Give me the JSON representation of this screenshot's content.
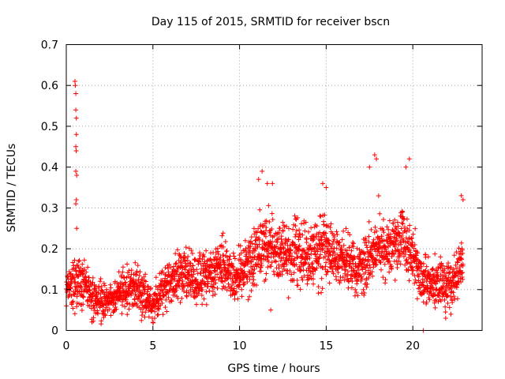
{
  "chart_data": {
    "type": "scatter",
    "title": "Day 115 of 2015, SRMTID for receiver bscn",
    "xlabel": "GPS time / hours",
    "ylabel": "SRMTID / TECUs",
    "xlim": [
      0,
      24
    ],
    "ylim": [
      0,
      0.7
    ],
    "xticks": [
      0,
      5,
      10,
      15,
      20
    ],
    "xtick_labels": [
      "0",
      "5",
      "10",
      "15",
      "20"
    ],
    "yticks": [
      0,
      0.1,
      0.2,
      0.3,
      0.4,
      0.5,
      0.6,
      0.7
    ],
    "ytick_labels": [
      "0",
      "0.1",
      "0.2",
      "0.3",
      "0.4",
      "0.5",
      "0.6",
      "0.7"
    ],
    "grid": true,
    "marker": "+",
    "series": [
      {
        "name": "SRMTID",
        "color": "#ff0000",
        "trend": [
          {
            "x": 0.0,
            "y": 0.1
          },
          {
            "x": 0.5,
            "y": 0.11
          },
          {
            "x": 1.0,
            "y": 0.12
          },
          {
            "x": 1.5,
            "y": 0.08
          },
          {
            "x": 2.0,
            "y": 0.07
          },
          {
            "x": 2.5,
            "y": 0.07
          },
          {
            "x": 3.0,
            "y": 0.09
          },
          {
            "x": 3.5,
            "y": 0.1
          },
          {
            "x": 4.0,
            "y": 0.11
          },
          {
            "x": 4.5,
            "y": 0.09
          },
          {
            "x": 5.0,
            "y": 0.06
          },
          {
            "x": 5.5,
            "y": 0.1
          },
          {
            "x": 6.0,
            "y": 0.11
          },
          {
            "x": 6.5,
            "y": 0.14
          },
          {
            "x": 7.0,
            "y": 0.13
          },
          {
            "x": 7.5,
            "y": 0.12
          },
          {
            "x": 8.0,
            "y": 0.14
          },
          {
            "x": 8.5,
            "y": 0.15
          },
          {
            "x": 9.0,
            "y": 0.16
          },
          {
            "x": 9.5,
            "y": 0.13
          },
          {
            "x": 10.0,
            "y": 0.13
          },
          {
            "x": 10.5,
            "y": 0.17
          },
          {
            "x": 11.0,
            "y": 0.19
          },
          {
            "x": 11.5,
            "y": 0.21
          },
          {
            "x": 12.0,
            "y": 0.2
          },
          {
            "x": 12.5,
            "y": 0.18
          },
          {
            "x": 13.0,
            "y": 0.18
          },
          {
            "x": 13.5,
            "y": 0.2
          },
          {
            "x": 14.0,
            "y": 0.18
          },
          {
            "x": 14.5,
            "y": 0.19
          },
          {
            "x": 15.0,
            "y": 0.21
          },
          {
            "x": 15.5,
            "y": 0.19
          },
          {
            "x": 16.0,
            "y": 0.17
          },
          {
            "x": 16.5,
            "y": 0.16
          },
          {
            "x": 17.0,
            "y": 0.15
          },
          {
            "x": 17.5,
            "y": 0.17
          },
          {
            "x": 18.0,
            "y": 0.22
          },
          {
            "x": 18.5,
            "y": 0.2
          },
          {
            "x": 19.0,
            "y": 0.21
          },
          {
            "x": 19.5,
            "y": 0.22
          },
          {
            "x": 20.0,
            "y": 0.17
          },
          {
            "x": 20.5,
            "y": 0.13
          },
          {
            "x": 21.0,
            "y": 0.12
          },
          {
            "x": 21.5,
            "y": 0.12
          },
          {
            "x": 22.0,
            "y": 0.11
          },
          {
            "x": 22.5,
            "y": 0.13
          },
          {
            "x": 22.9,
            "y": 0.16
          }
        ],
        "spikes": [
          {
            "x": 0.5,
            "y": 0.61
          },
          {
            "x": 0.52,
            "y": 0.6
          },
          {
            "x": 0.55,
            "y": 0.58
          },
          {
            "x": 0.55,
            "y": 0.54
          },
          {
            "x": 0.58,
            "y": 0.52
          },
          {
            "x": 0.58,
            "y": 0.48
          },
          {
            "x": 0.55,
            "y": 0.45
          },
          {
            "x": 0.57,
            "y": 0.44
          },
          {
            "x": 0.55,
            "y": 0.39
          },
          {
            "x": 0.6,
            "y": 0.38
          },
          {
            "x": 0.58,
            "y": 0.32
          },
          {
            "x": 0.55,
            "y": 0.31
          },
          {
            "x": 0.6,
            "y": 0.25
          },
          {
            "x": 11.3,
            "y": 0.39
          },
          {
            "x": 11.1,
            "y": 0.37
          },
          {
            "x": 11.6,
            "y": 0.36
          },
          {
            "x": 11.9,
            "y": 0.36
          },
          {
            "x": 14.8,
            "y": 0.36
          },
          {
            "x": 15.0,
            "y": 0.35
          },
          {
            "x": 17.8,
            "y": 0.43
          },
          {
            "x": 17.9,
            "y": 0.42
          },
          {
            "x": 17.5,
            "y": 0.4
          },
          {
            "x": 19.8,
            "y": 0.42
          },
          {
            "x": 19.6,
            "y": 0.4
          },
          {
            "x": 22.8,
            "y": 0.33
          },
          {
            "x": 22.9,
            "y": 0.32
          }
        ],
        "low_points": [
          {
            "x": 5.0,
            "y": 0.02
          },
          {
            "x": 5.1,
            "y": 0.03
          },
          {
            "x": 20.6,
            "y": 0.0
          },
          {
            "x": 21.9,
            "y": 0.03
          },
          {
            "x": 22.2,
            "y": 0.04
          },
          {
            "x": 11.8,
            "y": 0.05
          }
        ]
      }
    ]
  }
}
